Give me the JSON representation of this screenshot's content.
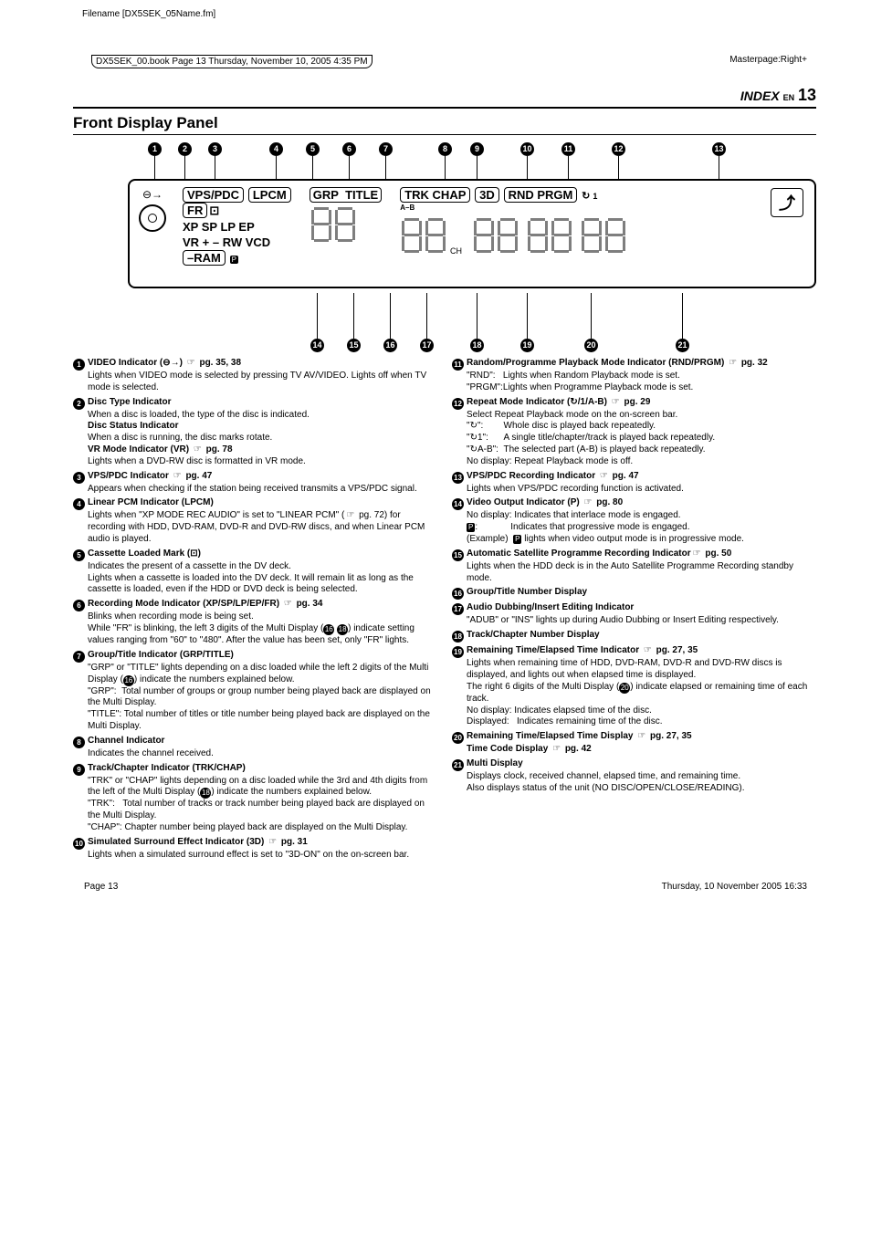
{
  "meta": {
    "filename": "Filename [DX5SEK_05Name.fm]",
    "framehead": "DX5SEK_00.book  Page 13  Thursday, November 10, 2005  4:35 PM",
    "masterpage": "Masterpage:Right+",
    "index_label": "INDEX",
    "lang": "EN",
    "page_num": "13",
    "footer_left": "Page 13",
    "footer_right": "Thursday, 10 November 2005  16:33"
  },
  "section_title": "Front Display Panel",
  "display_labels": {
    "vps_pdc": "VPS/PDC",
    "lpcm": "LPCM",
    "fr": "FR",
    "rec_modes": "XP SP LP EP",
    "vr_rw_vcd": "VR  + – RW  VCD",
    "ram": "–RAM",
    "grp": "GRP",
    "title": "TITLE",
    "trk_chap": "TRK CHAP",
    "threeD": "3D",
    "rnd_prgm": "RND PRGM",
    "ab": "A–B",
    "one": "1",
    "ch": "CH"
  },
  "top_nums": [
    "1",
    "2",
    "3",
    "4",
    "5",
    "6",
    "7",
    "8",
    "9",
    "10",
    "11",
    "12",
    "13"
  ],
  "bot_nums": [
    "14",
    "15",
    "16",
    "17",
    "18",
    "19",
    "20",
    "21"
  ],
  "left_items": [
    {
      "n": "1",
      "title": "VIDEO Indicator (⊖→) ",
      "ref": "pg. 35, 38",
      "body": [
        "Lights when VIDEO mode is selected by pressing TV AV/VIDEO. Lights off when TV mode is selected."
      ]
    },
    {
      "n": "2",
      "title": "Disc Type Indicator",
      "body": [
        "When a disc is loaded, the type of the disc is indicated.",
        "<b>Disc Status Indicator</b>",
        "When a disc is running, the disc marks rotate.",
        "<b>VR Mode Indicator (VR)</b> <span class='pointer'></span> <b>pg. 78</b>",
        "Lights when a DVD-RW disc is formatted in VR mode."
      ]
    },
    {
      "n": "3",
      "title": "VPS/PDC Indicator ",
      "ref": "pg. 47",
      "body": [
        "Appears when checking if the station being received transmits a VPS/PDC signal."
      ]
    },
    {
      "n": "4",
      "title": "Linear PCM Indicator (LPCM)",
      "body": [
        "Lights when \"XP MODE REC AUDIO\" is set to \"LINEAR PCM\" (<span class='pointer'></span> pg. 72) for recording with HDD, DVD-RAM, DVD-R and DVD-RW discs, and when Linear PCM audio is played."
      ]
    },
    {
      "n": "5",
      "title": "Cassette Loaded Mark (⊡)",
      "body": [
        "Indicates the present of a cassette in the DV deck.",
        "Lights when a cassette is loaded into the DV deck. It will remain lit as long as the cassette is loaded, even if the HDD or DVD deck is being selected."
      ]
    },
    {
      "n": "6",
      "title": "Recording Mode Indicator (XP/SP/LP/EP/FR) ",
      "ref": "pg. 34",
      "body": [
        "Blinks when recording mode is being set.",
        "While \"FR\" is blinking, the left 3 digits of the Multi Display (<span class='cb-inline'>16</span> <span class='cb-inline'>18</span>) indicate setting values ranging from \"60\" to \"480\". After the value has been set, only \"FR\" lights."
      ]
    },
    {
      "n": "7",
      "title": "Group/Title Indicator (GRP/TITLE)",
      "body": [
        "\"GRP\" or \"TITLE\" lights depending on a disc loaded while the left 2 digits of the Multi Display (<span class='cb-inline'>16</span>) indicate the numbers explained below.",
        "\"GRP\":&nbsp;&nbsp;Total number of groups or group number being played back are displayed on the Multi Display.",
        "\"TITLE\": Total number of titles or title number being played back are displayed on the Multi Display."
      ]
    },
    {
      "n": "8",
      "title": "Channel Indicator",
      "body": [
        "Indicates the channel received."
      ]
    },
    {
      "n": "9",
      "title": "Track/Chapter Indicator (TRK/CHAP)",
      "body": [
        "\"TRK\" or \"CHAP\" lights depending on a disc loaded while the 3rd and 4th digits from the left of the Multi Display (<span class='cb-inline'>18</span>) indicate the numbers explained below.",
        "\"TRK\":&nbsp;&nbsp;&nbsp;Total number of tracks or track number being played back are displayed on the Multi Display.",
        "\"CHAP\": Chapter number being played back are displayed on the Multi Display."
      ]
    },
    {
      "n": "10",
      "title": "Simulated Surround Effect Indicator (3D) ",
      "ref": "pg. 31",
      "body": [
        "Lights when a simulated surround effect is set to \"3D-ON\" on the on-screen bar."
      ]
    }
  ],
  "right_items": [
    {
      "n": "11",
      "title": "Random/Programme Playback Mode Indicator (RND/PRGM) ",
      "ref": "pg. 32",
      "body": [
        "\"RND\":&nbsp;&nbsp;&nbsp;Lights when Random Playback mode is set.",
        "\"PRGM\":Lights when Programme Playback mode is set."
      ]
    },
    {
      "n": "12",
      "title": "Repeat Mode Indicator (↻/1/A-B) ",
      "ref": "pg. 29",
      "body": [
        "Select Repeat Playback mode on the on-screen bar.",
        "\"<span class='repeat-ico'></span>\":&nbsp;&nbsp;&nbsp;&nbsp;&nbsp;&nbsp;&nbsp;&nbsp;Whole disc is played back repeatedly.",
        "\"<span class='repeat-ico'></span>1\":&nbsp;&nbsp;&nbsp;&nbsp;&nbsp;&nbsp;A single title/chapter/track is played back repeatedly.",
        "\"<span class='repeat-ico'></span>A-B\":&nbsp;&nbsp;The selected part (A-B) is played back repeatedly.",
        "No display:&nbsp;Repeat Playback mode is off."
      ]
    },
    {
      "n": "13",
      "title": "VPS/PDC Recording Indicator ",
      "ref": "pg. 47",
      "body": [
        "Lights when VPS/PDC recording function is activated."
      ]
    },
    {
      "n": "14",
      "title": "Video Output Indicator (P) ",
      "ref": "pg. 80",
      "body": [
        "No display:&nbsp;Indicates that interlace mode is engaged.",
        "<span class='prog-ico'>P</span>:&nbsp;&nbsp;&nbsp;&nbsp;&nbsp;&nbsp;&nbsp;&nbsp;&nbsp;&nbsp;&nbsp;&nbsp;&nbsp;Indicates that progressive mode is engaged.",
        "(Example)&nbsp;&nbsp;<span class='prog-ico'>P</span> lights when video output mode is in progressive mode."
      ]
    },
    {
      "n": "15",
      "title": "Automatic Satellite Programme Recording Indicator",
      "ref": "pg. 50",
      "body": [
        "Lights when the HDD deck is in the Auto Satellite Programme Recording standby mode."
      ]
    },
    {
      "n": "16",
      "title": "Group/Title Number Display",
      "body": []
    },
    {
      "n": "17",
      "title": "Audio Dubbing/Insert Editing Indicator",
      "body": [
        "\"ADUB\" or \"INS\" lights up during Audio Dubbing or Insert Editing respectively."
      ]
    },
    {
      "n": "18",
      "title": "Track/Chapter Number Display",
      "body": []
    },
    {
      "n": "19",
      "title": "Remaining Time/Elapsed Time Indicator ",
      "ref": "pg. 27, 35",
      "body": [
        "Lights when remaining time of HDD, DVD-RAM, DVD-R and DVD-RW discs is displayed, and lights out when elapsed time is displayed.",
        "The right 6 digits of the Multi Display (<span class='cb-inline'>20</span>) indicate elapsed or remaining time of each track.",
        "No display:&nbsp;Indicates elapsed time of the disc.",
        "Displayed:&nbsp;&nbsp;&nbsp;Indicates remaining time of the disc."
      ]
    },
    {
      "n": "20",
      "title": "Remaining Time/Elapsed Time Display ",
      "ref": "pg. 27, 35",
      "body": [
        "<b>Time Code Display</b> <span class='pointer'></span> <b>pg. 42</b>"
      ]
    },
    {
      "n": "21",
      "title": "Multi Display",
      "body": [
        "Displays clock, received channel, elapsed time, and remaining time.",
        "Also displays status of the unit (NO DISC/OPEN/CLOSE/READING)."
      ]
    }
  ]
}
